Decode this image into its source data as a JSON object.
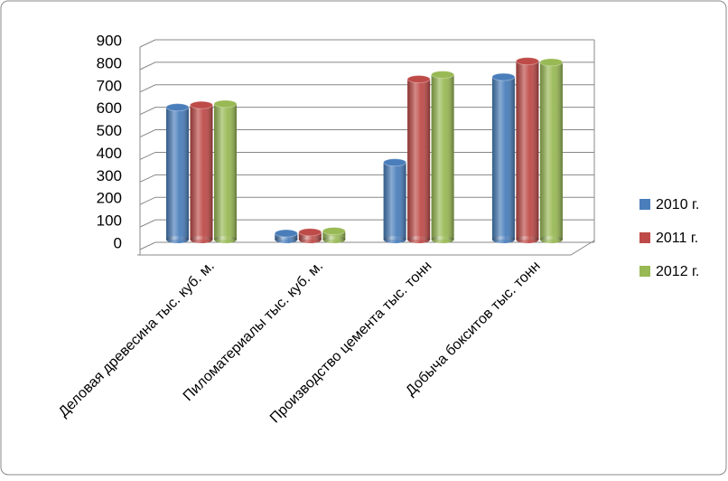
{
  "chart_data": {
    "type": "bar",
    "categories": [
      "Деловая древесина тыс. куб. м.",
      "Пиломатериалы тыс. куб. м.",
      "Производство цемента тыс. тонн",
      "Добыча бокситов тыс. тонн"
    ],
    "series": [
      {
        "name": "2010 г.",
        "color": "#4a7ebb",
        "values": [
          600,
          40,
          355,
          735
        ]
      },
      {
        "name": "2011 г.",
        "color": "#be4b48",
        "values": [
          610,
          45,
          725,
          805
        ]
      },
      {
        "name": "2012 г.",
        "color": "#98b954",
        "values": [
          615,
          50,
          745,
          800
        ]
      }
    ],
    "ylim": [
      0,
      900
    ],
    "yticks": [
      0,
      100,
      200,
      300,
      400,
      500,
      600,
      700,
      800,
      900
    ],
    "grid": true,
    "legend": "right"
  }
}
